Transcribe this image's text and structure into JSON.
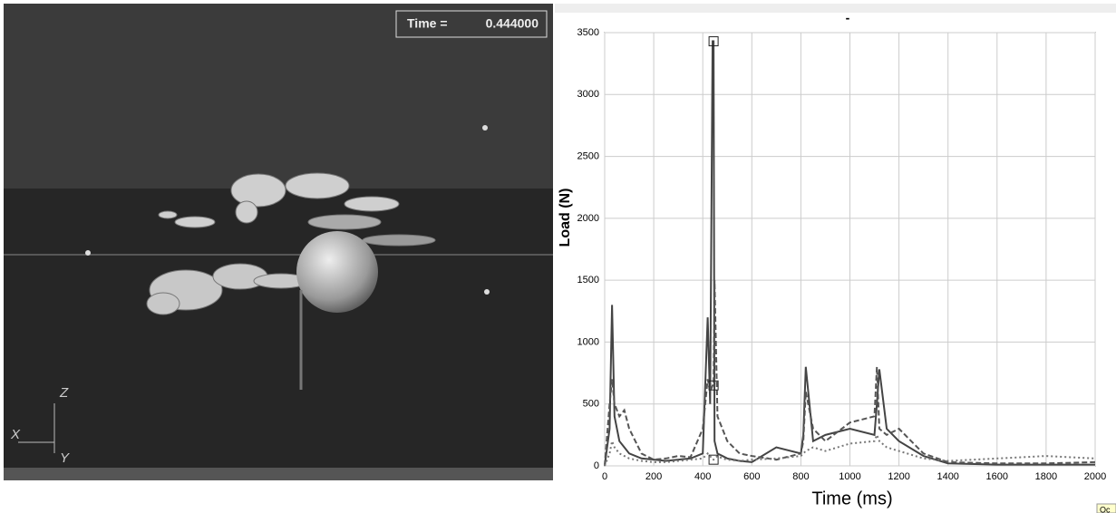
{
  "viewport": {
    "time_label": "Time =",
    "time_value": "0.444000",
    "axes": [
      "Z",
      "X",
      "Y"
    ]
  },
  "tooltip": "Oc",
  "chart_data": {
    "type": "line",
    "title": "-",
    "x_label": "Time (ms)",
    "y_label": "Load (N)",
    "xlim": [
      0,
      2000
    ],
    "xticks": [
      0,
      200,
      400,
      600,
      800,
      1000,
      1200,
      1400,
      1600,
      1800,
      2000
    ],
    "ylim": [
      0,
      3500
    ],
    "yticks": [
      0,
      500,
      1000,
      1500,
      2000,
      2500,
      3000,
      3500
    ],
    "grid": true,
    "x": [
      0,
      20,
      30,
      40,
      60,
      80,
      100,
      150,
      200,
      250,
      300,
      350,
      400,
      420,
      430,
      440,
      444,
      448,
      460,
      480,
      500,
      550,
      600,
      700,
      800,
      810,
      820,
      850,
      900,
      1000,
      1100,
      1110,
      1120,
      1150,
      1200,
      1300,
      1400,
      1600,
      1800,
      2000
    ],
    "series": [
      {
        "color": "#444444",
        "style": "solid",
        "values": [
          0,
          300,
          1300,
          400,
          200,
          150,
          100,
          60,
          50,
          40,
          50,
          60,
          100,
          1200,
          500,
          3430,
          3430,
          200,
          100,
          80,
          60,
          40,
          30,
          150,
          100,
          250,
          800,
          200,
          250,
          300,
          250,
          500,
          780,
          300,
          200,
          80,
          20,
          10,
          10,
          10
        ]
      },
      {
        "color": "#555555",
        "style": "dashed",
        "values": [
          0,
          500,
          700,
          500,
          400,
          450,
          300,
          100,
          50,
          60,
          80,
          70,
          300,
          700,
          600,
          650,
          650,
          1500,
          400,
          300,
          200,
          100,
          80,
          50,
          100,
          200,
          600,
          300,
          200,
          350,
          400,
          800,
          300,
          250,
          300,
          100,
          30,
          20,
          20,
          30
        ]
      },
      {
        "color": "#777777",
        "style": "dotted",
        "values": [
          0,
          100,
          200,
          150,
          100,
          80,
          60,
          40,
          30,
          30,
          40,
          50,
          60,
          100,
          80,
          50,
          50,
          60,
          80,
          60,
          50,
          40,
          50,
          60,
          80,
          100,
          120,
          150,
          120,
          180,
          200,
          250,
          200,
          150,
          120,
          60,
          40,
          60,
          80,
          60
        ]
      }
    ],
    "markers": [
      {
        "x": 444,
        "y": 3430
      },
      {
        "x": 444,
        "y": 650
      },
      {
        "x": 444,
        "y": 50
      }
    ]
  }
}
